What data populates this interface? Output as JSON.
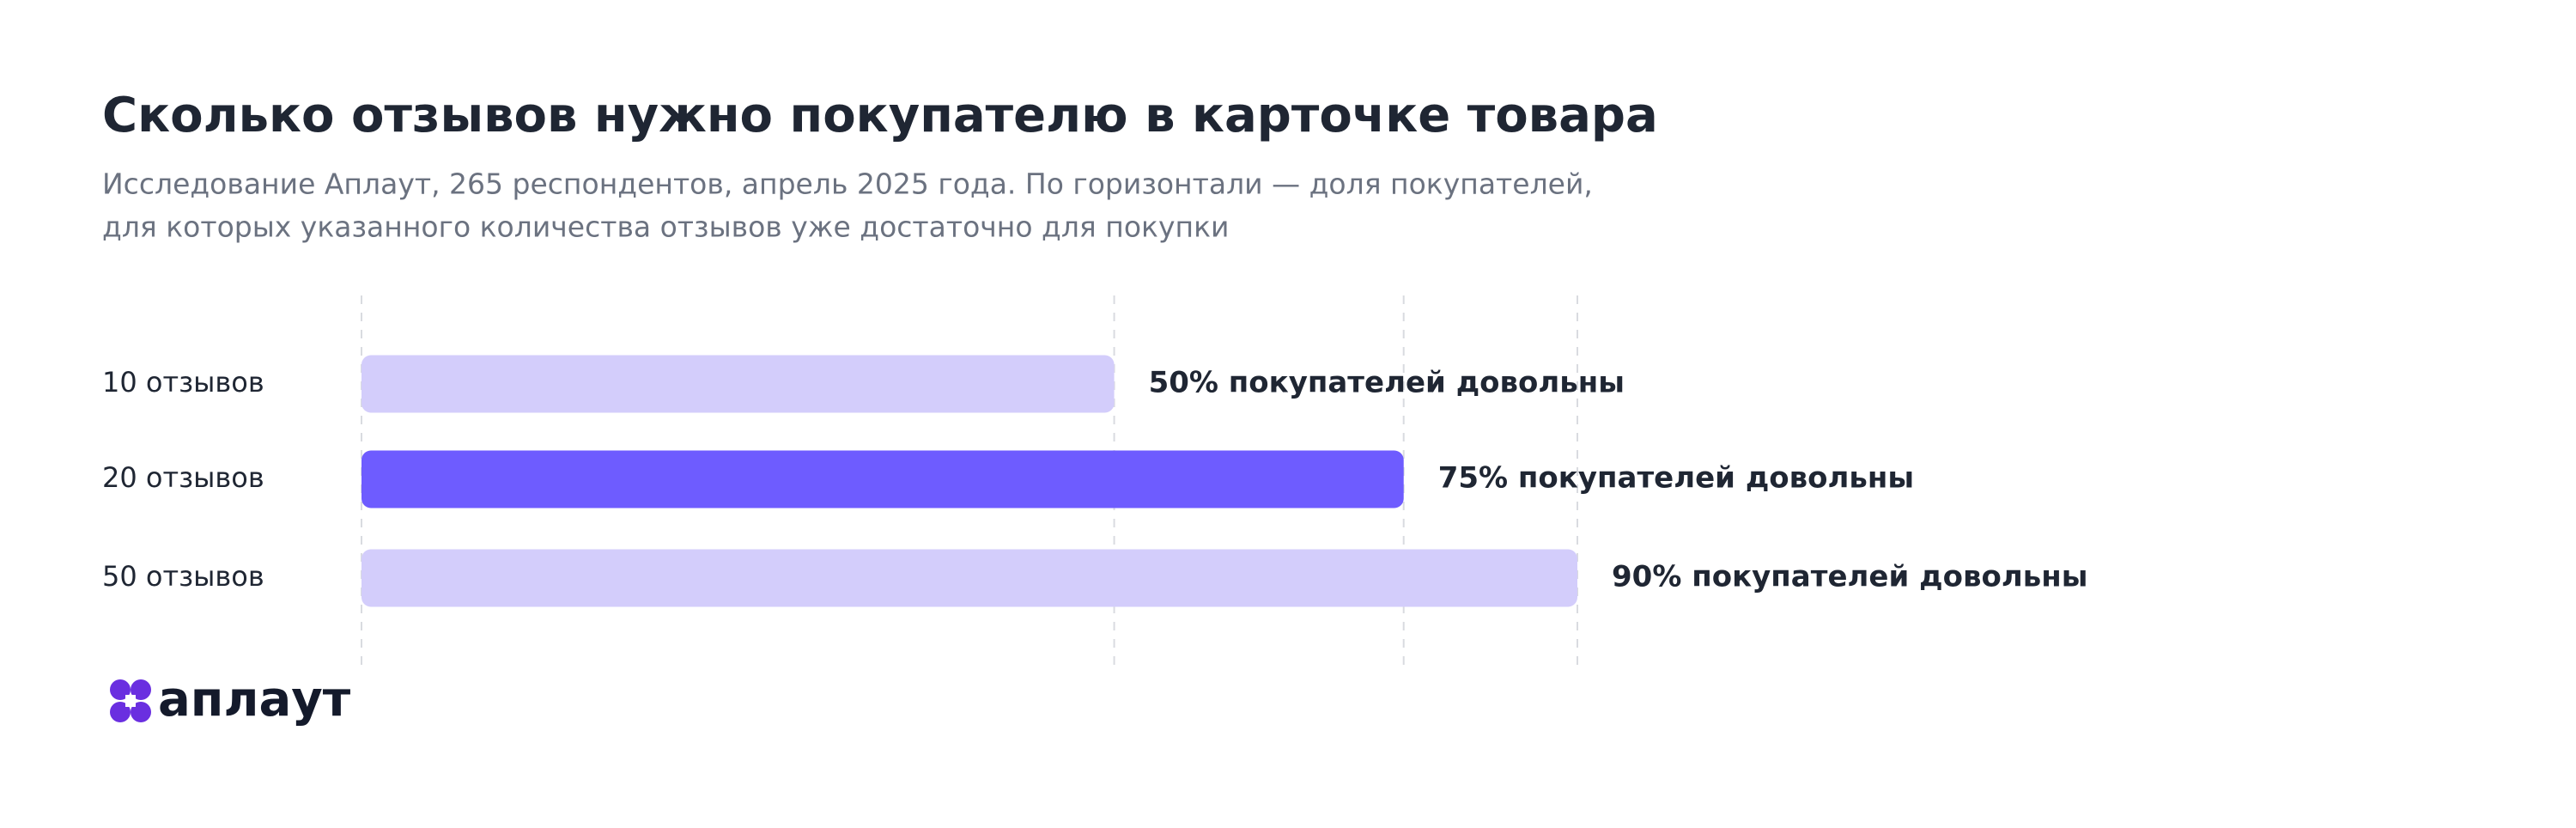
{
  "chart_data": {
    "type": "bar",
    "orientation": "horizontal",
    "title": "Сколько отзывов нужно покупателю в карточке товара",
    "subtitle": [
      "Исследование Аплаут, 265 респондентов, апрель 2025 года. По горизонтали — доля покупателей,",
      "для которых указанного количества отзывов уже достаточно для покупки"
    ],
    "categories": [
      "10 отзывов",
      "20 отзывов",
      "50 отзывов"
    ],
    "values": [
      50,
      75,
      90
    ],
    "value_labels": [
      "50% покупателей довольны",
      "75% покупателей довольны",
      "90% покупателей довольны"
    ],
    "colors": [
      "#d3cdfb",
      "#6e5cff",
      "#d3cdfb"
    ],
    "xlim": [
      -15,
      90
    ],
    "grid": true
  },
  "logo": "аплаут"
}
